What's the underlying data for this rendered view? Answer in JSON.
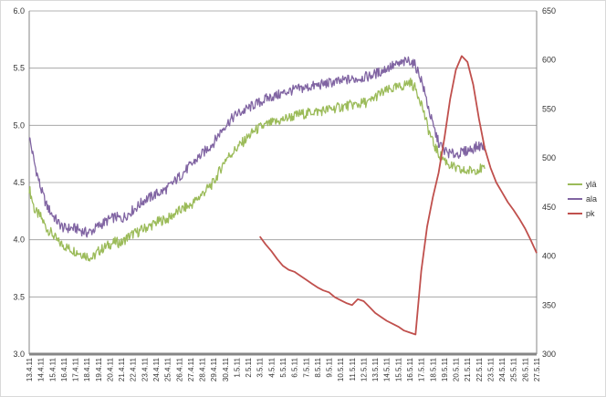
{
  "chart_data": {
    "type": "line",
    "title": "",
    "y_left": {
      "min": 3.0,
      "max": 6.0,
      "ticks": [
        "3.0",
        "3.5",
        "4.0",
        "4.5",
        "5.0",
        "5.5",
        "6.0"
      ]
    },
    "y_right": {
      "min": 300,
      "max": 650,
      "ticks": [
        "300",
        "350",
        "400",
        "450",
        "500",
        "550",
        "600",
        "650"
      ]
    },
    "x_range": [
      0,
      44
    ],
    "x_ticks": [
      "13.4.11",
      "14.4.11",
      "15.4.11",
      "16.4.11",
      "17.4.11",
      "18.4.11",
      "19.4.11",
      "20.4.11",
      "21.4.11",
      "22.4.11",
      "23.4.11",
      "24.4.11",
      "25.4.11",
      "26.4.11",
      "27.4.11",
      "28.4.11",
      "29.4.11",
      "30.4.11",
      "1.5.11",
      "2.5.11",
      "3.5.11",
      "4.5.11",
      "5.5.11",
      "6.5.11",
      "7.5.11",
      "8.5.11",
      "9.5.11",
      "10.5.11",
      "11.5.11",
      "12.5.11",
      "13.5.11",
      "14.5.11",
      "15.5.11",
      "16.5.11",
      "17.5.11",
      "18.5.11",
      "19.5.11",
      "20.5.11",
      "21.5.11",
      "22.5.11",
      "23.5.11",
      "24.5.11",
      "25.5.11",
      "26.5.11",
      "27.5.11"
    ],
    "legend_position": "right",
    "grid": "horizontal",
    "series": [
      {
        "name": "ylä",
        "axis": "left",
        "color": "#9bbb59",
        "x": [
          0,
          0.5,
          1,
          1.5,
          2,
          2.5,
          3,
          3.5,
          4,
          4.5,
          5,
          5.5,
          6,
          6.5,
          7,
          7.5,
          8,
          8.5,
          9,
          9.5,
          10,
          10.5,
          11,
          11.5,
          12,
          12.5,
          13,
          13.5,
          14,
          14.5,
          15,
          15.5,
          16,
          16.5,
          17,
          17.5,
          18,
          18.5,
          19,
          19.5,
          20,
          20.5,
          21,
          21.5,
          22,
          22.5,
          23,
          23.5,
          24,
          24.5,
          25,
          25.5,
          26,
          26.5,
          27,
          27.5,
          28,
          28.5,
          29,
          29.5,
          30,
          30.5,
          31,
          31.5,
          32,
          32.5,
          33,
          33.5,
          34,
          34.5,
          35,
          35.5,
          36,
          36.5,
          37,
          37.5,
          38,
          38.5,
          39,
          39.5
        ],
        "y": [
          4.45,
          4.25,
          4.2,
          4.1,
          4.05,
          3.98,
          3.95,
          3.92,
          3.9,
          3.88,
          3.86,
          3.84,
          3.9,
          3.93,
          3.96,
          3.98,
          3.97,
          4.02,
          4.05,
          4.07,
          4.1,
          4.12,
          4.15,
          4.17,
          4.18,
          4.22,
          4.25,
          4.28,
          4.3,
          4.35,
          4.4,
          4.45,
          4.5,
          4.6,
          4.7,
          4.75,
          4.8,
          4.85,
          4.9,
          4.95,
          4.98,
          5.0,
          5.02,
          5.03,
          5.05,
          5.07,
          5.08,
          5.1,
          5.1,
          5.12,
          5.12,
          5.13,
          5.14,
          5.15,
          5.16,
          5.17,
          5.18,
          5.18,
          5.2,
          5.2,
          5.25,
          5.28,
          5.3,
          5.32,
          5.33,
          5.35,
          5.38,
          5.32,
          5.2,
          5.0,
          4.85,
          4.75,
          4.7,
          4.65,
          4.62,
          4.6,
          4.6,
          4.61,
          4.62,
          4.62
        ]
      },
      {
        "name": "ala",
        "axis": "left",
        "color": "#8064a2",
        "x": [
          0,
          0.5,
          1,
          1.5,
          2,
          2.5,
          3,
          3.5,
          4,
          4.5,
          5,
          5.5,
          6,
          6.5,
          7,
          7.5,
          8,
          8.5,
          9,
          9.5,
          10,
          10.5,
          11,
          11.5,
          12,
          12.5,
          13,
          13.5,
          14,
          14.5,
          15,
          15.5,
          16,
          16.5,
          17,
          17.5,
          18,
          18.5,
          19,
          19.5,
          20,
          20.5,
          21,
          21.5,
          22,
          22.5,
          23,
          23.5,
          24,
          24.5,
          25,
          25.5,
          26,
          26.5,
          27,
          27.5,
          28,
          28.5,
          29,
          29.5,
          30,
          30.5,
          31,
          31.5,
          32,
          32.5,
          33,
          33.5,
          34,
          34.5,
          35,
          35.5,
          36,
          36.5,
          37,
          37.5,
          38,
          38.5,
          39,
          39.5
        ],
        "y": [
          4.9,
          4.65,
          4.45,
          4.3,
          4.22,
          4.15,
          4.1,
          4.1,
          4.1,
          4.08,
          4.06,
          4.08,
          4.12,
          4.15,
          4.18,
          4.2,
          4.18,
          4.22,
          4.26,
          4.3,
          4.35,
          4.37,
          4.4,
          4.42,
          4.45,
          4.5,
          4.55,
          4.6,
          4.65,
          4.7,
          4.75,
          4.8,
          4.85,
          4.93,
          5.0,
          5.05,
          5.1,
          5.12,
          5.15,
          5.18,
          5.2,
          5.23,
          5.25,
          5.26,
          5.28,
          5.3,
          5.31,
          5.32,
          5.33,
          5.34,
          5.35,
          5.36,
          5.37,
          5.38,
          5.38,
          5.4,
          5.4,
          5.41,
          5.42,
          5.43,
          5.45,
          5.47,
          5.5,
          5.52,
          5.53,
          5.55,
          5.57,
          5.52,
          5.4,
          5.2,
          5.0,
          4.85,
          4.78,
          4.75,
          4.75,
          4.76,
          4.78,
          4.8,
          4.82,
          4.82
        ]
      },
      {
        "name": "pk",
        "axis": "right",
        "color": "#c0504d",
        "x": [
          20,
          20.5,
          21,
          21.5,
          22,
          22.5,
          23,
          23.5,
          24,
          24.5,
          25,
          25.5,
          26,
          26.5,
          27,
          27.5,
          28,
          28.5,
          29,
          29.5,
          30,
          30.5,
          31,
          31.5,
          32,
          32.5,
          33,
          33.5,
          34,
          34.5,
          35,
          35.5,
          36,
          36.5,
          37,
          37.5,
          38,
          38.5,
          39,
          39.5,
          40,
          40.5,
          41,
          41.5,
          42,
          42.5,
          43,
          43.5,
          44
        ],
        "y": [
          420,
          412,
          405,
          397,
          390,
          386,
          384,
          380,
          376,
          372,
          368,
          365,
          363,
          358,
          355,
          352,
          350,
          356,
          354,
          348,
          342,
          338,
          334,
          331,
          328,
          324,
          322,
          320,
          385,
          430,
          460,
          485,
          520,
          560,
          590,
          604,
          598,
          575,
          540,
          510,
          490,
          475,
          465,
          455,
          447,
          438,
          428,
          416,
          403
        ]
      }
    ]
  }
}
